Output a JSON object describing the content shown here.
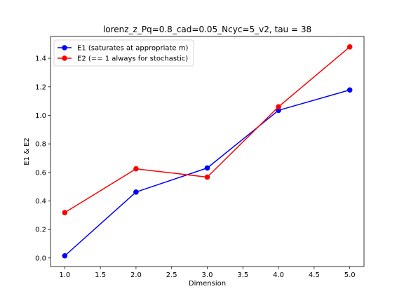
{
  "chart_data": {
    "type": "line",
    "title": "lorenz_z_Pq=0.8_cad=0.05_Ncyc=5_v2, tau = 38",
    "xlabel": "Dimension",
    "ylabel": "E1 & E2",
    "xlim": [
      0.8,
      5.2
    ],
    "ylim": [
      -0.06,
      1.553
    ],
    "grid": false,
    "legend_position": "upper-left",
    "x": [
      1.0,
      2.0,
      3.0,
      4.0,
      5.0
    ],
    "xticks": [
      "1.0",
      "1.5",
      "2.0",
      "2.5",
      "3.0",
      "3.5",
      "4.0",
      "4.5",
      "5.0"
    ],
    "xtick_values": [
      1.0,
      1.5,
      2.0,
      2.5,
      3.0,
      3.5,
      4.0,
      4.5,
      5.0
    ],
    "yticks": [
      "0.0",
      "0.2",
      "0.4",
      "0.6",
      "0.8",
      "1.0",
      "1.2",
      "1.4"
    ],
    "ytick_values": [
      0.0,
      0.2,
      0.4,
      0.6,
      0.8,
      1.0,
      1.2,
      1.4
    ],
    "series": [
      {
        "name": "E1 (saturates at appropriate m)",
        "color": "#0000ff",
        "marker": "circle",
        "values": [
          0.015,
          0.462,
          0.631,
          1.035,
          1.178
        ]
      },
      {
        "name": "E2 (== 1 always for stochastic)",
        "color": "#ff0000",
        "marker": "circle",
        "values": [
          0.318,
          0.625,
          0.567,
          1.06,
          1.48
        ]
      }
    ]
  }
}
